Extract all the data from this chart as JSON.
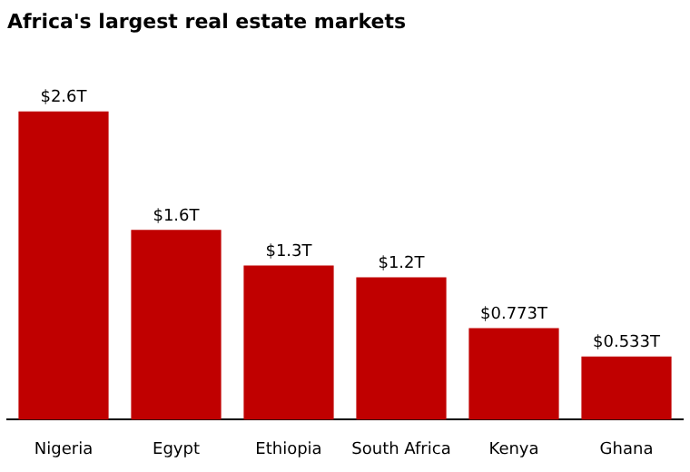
{
  "chart_data": {
    "type": "bar",
    "title": "Africa's largest real estate markets",
    "categories": [
      "Nigeria",
      "Egypt",
      "Ethiopia",
      "South Africa",
      "Kenya",
      "Ghana"
    ],
    "values": [
      2.6,
      1.6,
      1.3,
      1.2,
      0.773,
      0.533
    ],
    "value_labels": [
      "$2.6T",
      "$1.6T",
      "$1.3T",
      "$1.2T",
      "$0.773T",
      "$0.533T"
    ],
    "color": "#c00000",
    "grid": false,
    "legend": false
  }
}
